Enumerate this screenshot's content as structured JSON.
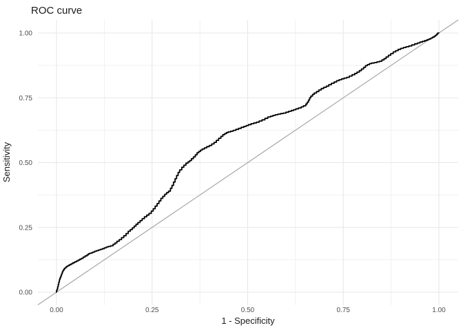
{
  "chart": {
    "title": "ROC curve",
    "xlabel": "1 - Specificity",
    "ylabel": "Sensitivity"
  },
  "chart_data": {
    "type": "line",
    "title": "ROC curve",
    "xlabel": "1 - Specificity",
    "ylabel": "Sensitivity",
    "xlim": [
      0,
      1
    ],
    "ylim": [
      0,
      1
    ],
    "grid": true,
    "legend": false,
    "x_ticks": [
      0,
      0.25,
      0.5,
      0.75,
      1
    ],
    "x_tick_labels": [
      "0.00",
      "0.25",
      "0.50",
      "0.75",
      "1.00"
    ],
    "y_ticks": [
      0,
      0.25,
      0.5,
      0.75,
      1
    ],
    "y_tick_labels": [
      "0.00",
      "0.25",
      "0.50",
      "0.75",
      "1.00"
    ],
    "x_minor_ticks": [
      0.125,
      0.375,
      0.625,
      0.875
    ],
    "y_minor_ticks": [
      0.125,
      0.375,
      0.625,
      0.875
    ],
    "colors": {
      "background": "#FFFFFF",
      "curve": "#000000",
      "diagonal": "#A6A6A6",
      "grid_major": "#E7E7E7",
      "grid_minor": "#F0F0F0",
      "tick_label": "#4D4D4D",
      "text": "#1A1A1A"
    },
    "series": [
      {
        "name": "ROC curve",
        "style": "step",
        "color": "#000000",
        "points": [
          [
            0.0,
            0.0
          ],
          [
            0.003,
            0.012
          ],
          [
            0.006,
            0.03
          ],
          [
            0.009,
            0.048
          ],
          [
            0.013,
            0.062
          ],
          [
            0.017,
            0.078
          ],
          [
            0.022,
            0.09
          ],
          [
            0.028,
            0.098
          ],
          [
            0.035,
            0.104
          ],
          [
            0.043,
            0.11
          ],
          [
            0.052,
            0.117
          ],
          [
            0.061,
            0.124
          ],
          [
            0.07,
            0.131
          ],
          [
            0.08,
            0.14
          ],
          [
            0.087,
            0.148
          ],
          [
            0.095,
            0.152
          ],
          [
            0.105,
            0.158
          ],
          [
            0.115,
            0.163
          ],
          [
            0.125,
            0.168
          ],
          [
            0.135,
            0.174
          ],
          [
            0.148,
            0.179
          ],
          [
            0.158,
            0.19
          ],
          [
            0.17,
            0.203
          ],
          [
            0.182,
            0.218
          ],
          [
            0.193,
            0.235
          ],
          [
            0.203,
            0.248
          ],
          [
            0.213,
            0.262
          ],
          [
            0.224,
            0.276
          ],
          [
            0.236,
            0.291
          ],
          [
            0.248,
            0.304
          ],
          [
            0.258,
            0.322
          ],
          [
            0.268,
            0.342
          ],
          [
            0.278,
            0.362
          ],
          [
            0.288,
            0.378
          ],
          [
            0.298,
            0.39
          ],
          [
            0.306,
            0.412
          ],
          [
            0.314,
            0.438
          ],
          [
            0.322,
            0.462
          ],
          [
            0.333,
            0.482
          ],
          [
            0.344,
            0.498
          ],
          [
            0.353,
            0.508
          ],
          [
            0.363,
            0.522
          ],
          [
            0.372,
            0.538
          ],
          [
            0.381,
            0.548
          ],
          [
            0.393,
            0.557
          ],
          [
            0.406,
            0.566
          ],
          [
            0.418,
            0.578
          ],
          [
            0.43,
            0.594
          ],
          [
            0.44,
            0.608
          ],
          [
            0.449,
            0.616
          ],
          [
            0.462,
            0.621
          ],
          [
            0.476,
            0.628
          ],
          [
            0.49,
            0.636
          ],
          [
            0.502,
            0.643
          ],
          [
            0.516,
            0.65
          ],
          [
            0.53,
            0.656
          ],
          [
            0.545,
            0.665
          ],
          [
            0.56,
            0.676
          ],
          [
            0.572,
            0.682
          ],
          [
            0.586,
            0.687
          ],
          [
            0.6,
            0.691
          ],
          [
            0.614,
            0.698
          ],
          [
            0.626,
            0.704
          ],
          [
            0.64,
            0.711
          ],
          [
            0.652,
            0.719
          ],
          [
            0.659,
            0.733
          ],
          [
            0.665,
            0.75
          ],
          [
            0.674,
            0.763
          ],
          [
            0.686,
            0.774
          ],
          [
            0.699,
            0.786
          ],
          [
            0.712,
            0.795
          ],
          [
            0.726,
            0.806
          ],
          [
            0.739,
            0.816
          ],
          [
            0.752,
            0.823
          ],
          [
            0.766,
            0.829
          ],
          [
            0.78,
            0.839
          ],
          [
            0.792,
            0.849
          ],
          [
            0.803,
            0.861
          ],
          [
            0.813,
            0.874
          ],
          [
            0.824,
            0.882
          ],
          [
            0.838,
            0.886
          ],
          [
            0.851,
            0.891
          ],
          [
            0.862,
            0.901
          ],
          [
            0.874,
            0.914
          ],
          [
            0.887,
            0.927
          ],
          [
            0.9,
            0.937
          ],
          [
            0.914,
            0.944
          ],
          [
            0.929,
            0.95
          ],
          [
            0.944,
            0.958
          ],
          [
            0.957,
            0.965
          ],
          [
            0.969,
            0.971
          ],
          [
            0.979,
            0.977
          ],
          [
            0.988,
            0.984
          ],
          [
            0.994,
            0.991
          ],
          [
            1.0,
            1.0
          ]
        ]
      },
      {
        "name": "chance diagonal",
        "style": "line",
        "color": "#A6A6A6",
        "points": [
          [
            0,
            0
          ],
          [
            1,
            1
          ]
        ]
      }
    ]
  }
}
